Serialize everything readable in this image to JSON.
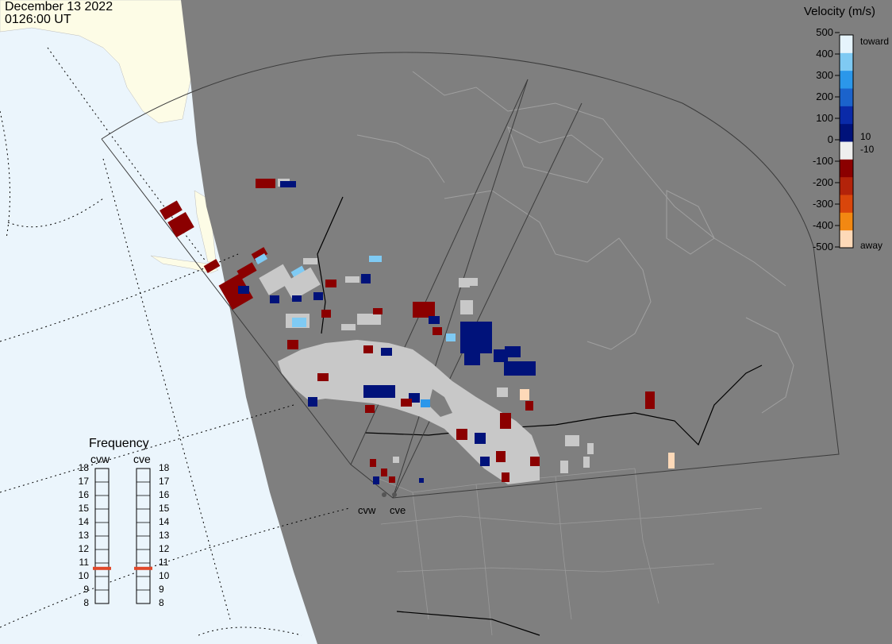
{
  "header": {
    "date": "December 13 2022",
    "time": "0126:00 UT"
  },
  "colorbar": {
    "title": "Velocity (m/s)",
    "ticks": [
      "500",
      "400",
      "300",
      "200",
      "100",
      "0",
      "-100",
      "-200",
      "-300",
      "-400",
      "-500"
    ],
    "toward_label": "toward",
    "away_label": "away",
    "plus_threshold": "10",
    "minus_threshold": "-10",
    "colors": [
      "#e6f4fc",
      "#7fcaf3",
      "#2b97ea",
      "#1b63cc",
      "#0a2aa8",
      "#00127a",
      "#eeeeee",
      "#8b0000",
      "#b3230a",
      "#d9460b",
      "#f28812",
      "#fdd9b8"
    ]
  },
  "frequency": {
    "title": "Frequency",
    "radars": [
      "cvw",
      "cve"
    ],
    "ticks": [
      "18",
      "17",
      "16",
      "15",
      "14",
      "13",
      "12",
      "11",
      "10",
      "9",
      "8"
    ],
    "cvw_mhz": 10.6,
    "cve_mhz": 10.6,
    "marker_color": "#e0482a"
  },
  "radars": {
    "cvw_label": "cvw",
    "cve_label": "cve"
  },
  "colors": {
    "ocean": "#ebf5fc",
    "land_day": "#fdfce6",
    "night": "#7f7f7f",
    "gs_scatter": "#c8c8c8"
  }
}
